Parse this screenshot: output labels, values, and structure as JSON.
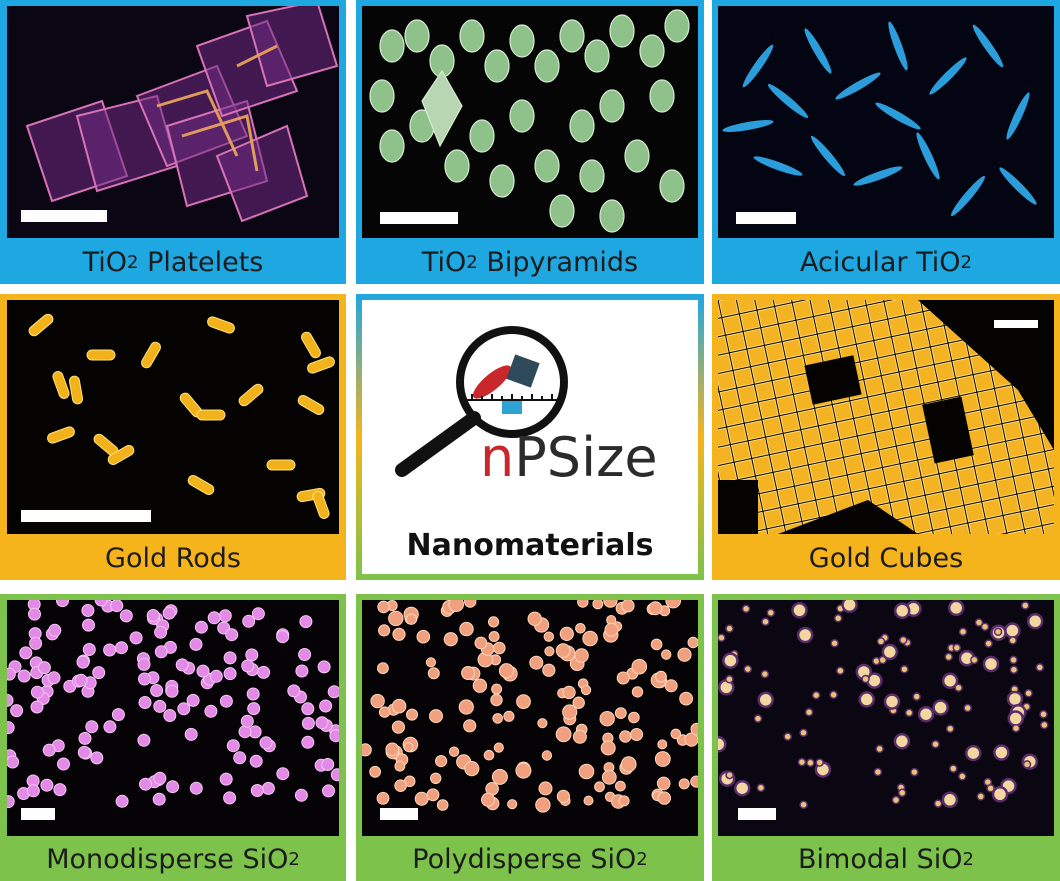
{
  "colors": {
    "blue": "#1ea7e1",
    "orange": "#f5b41c",
    "green": "#7dc24b"
  },
  "tiles": [
    {
      "id": "tio2-platelets",
      "prefix": "TiO",
      "sub": "2",
      "suffix": " Platelets",
      "color": "#1ea7e1"
    },
    {
      "id": "tio2-bipyramids",
      "prefix": "TiO",
      "sub": "2",
      "suffix": " Bipyramids",
      "color": "#1ea7e1"
    },
    {
      "id": "acicular-tio2",
      "prefix": "Acicular TiO",
      "sub": "2",
      "suffix": "",
      "color": "#1ea7e1"
    },
    {
      "id": "gold-rods",
      "prefix": "Gold Rods",
      "sub": "",
      "suffix": "",
      "color": "#f5b41c"
    },
    {
      "id": "gold-cubes",
      "prefix": "Gold Cubes",
      "sub": "",
      "suffix": "",
      "color": "#f5b41c"
    },
    {
      "id": "monodisperse-sio2",
      "prefix": "Monodisperse SiO",
      "sub": "2",
      "suffix": "",
      "color": "#7dc24b"
    },
    {
      "id": "polydisperse-sio2",
      "prefix": "Polydisperse SiO",
      "sub": "2",
      "suffix": "",
      "color": "#7dc24b"
    },
    {
      "id": "bimodal-sio2",
      "prefix": "Bimodal SiO",
      "sub": "2",
      "suffix": "",
      "color": "#7dc24b"
    }
  ],
  "center": {
    "logo_text_n": "n",
    "logo_text_rest": "PSize",
    "title": "Nanomaterials"
  },
  "icons": {
    "logo": "magnifier-icon"
  }
}
